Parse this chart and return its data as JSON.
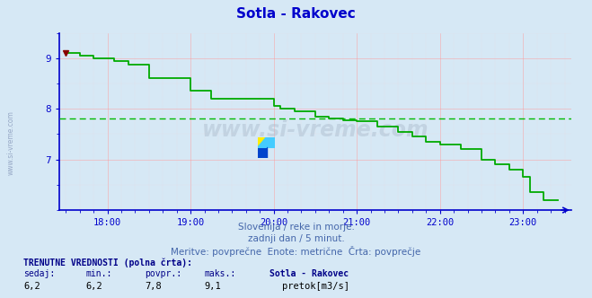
{
  "title": "Sotla - Rakovec",
  "title_color": "#0000cc",
  "bg_color": "#d6e8f5",
  "plot_bg_color": "#d6e8f5",
  "line_color": "#00aa00",
  "avg_line_color": "#00bb00",
  "avg_line_value": 7.8,
  "axis_color": "#0000cc",
  "grid_color_major": "#ff9999",
  "grid_color_minor": "#ffcccc",
  "yticks": [
    7,
    8,
    9
  ],
  "ylim": [
    6.0,
    9.5
  ],
  "xlim_hours": [
    17.42,
    23.58
  ],
  "x_tick_hours": [
    18,
    19,
    20,
    21,
    22,
    23
  ],
  "subtitle1": "Slovenija / reke in morje.",
  "subtitle2": "zadnji dan / 5 minut.",
  "subtitle3": "Meritve: povprečne  Enote: metrične  Črta: povprečje",
  "footer_label": "TRENUTNE VREDNOSTI (polna črta):",
  "footer_row1": [
    "sedaj:",
    "min.:",
    "povpr.:",
    "maks.:",
    "Sotla - Rakovec"
  ],
  "footer_row2": [
    "6,2",
    "6,2",
    "7,8",
    "9,1",
    "pretok[m3/s]"
  ],
  "legend_color": "#00cc00",
  "watermark_text": "www.si-vreme.com",
  "side_label": "www.si-vreme.com",
  "data_x_hours": [
    17.5,
    17.583,
    17.667,
    17.75,
    17.833,
    18.0,
    18.083,
    18.25,
    18.5,
    18.667,
    18.833,
    19.0,
    19.25,
    19.5,
    20.0,
    20.083,
    20.25,
    20.5,
    20.667,
    20.833,
    20.917,
    21.0,
    21.25,
    21.5,
    21.667,
    21.833,
    22.0,
    22.25,
    22.5,
    22.667,
    22.833,
    23.0,
    23.083,
    23.25,
    23.42
  ],
  "data_y": [
    9.1,
    9.1,
    9.05,
    9.05,
    9.0,
    9.0,
    8.95,
    8.87,
    8.6,
    8.6,
    8.6,
    8.35,
    8.2,
    8.2,
    8.05,
    8.0,
    7.95,
    7.85,
    7.8,
    7.78,
    7.78,
    7.75,
    7.65,
    7.55,
    7.45,
    7.35,
    7.3,
    7.2,
    7.0,
    6.9,
    6.8,
    6.65,
    6.35,
    6.2,
    6.2
  ]
}
